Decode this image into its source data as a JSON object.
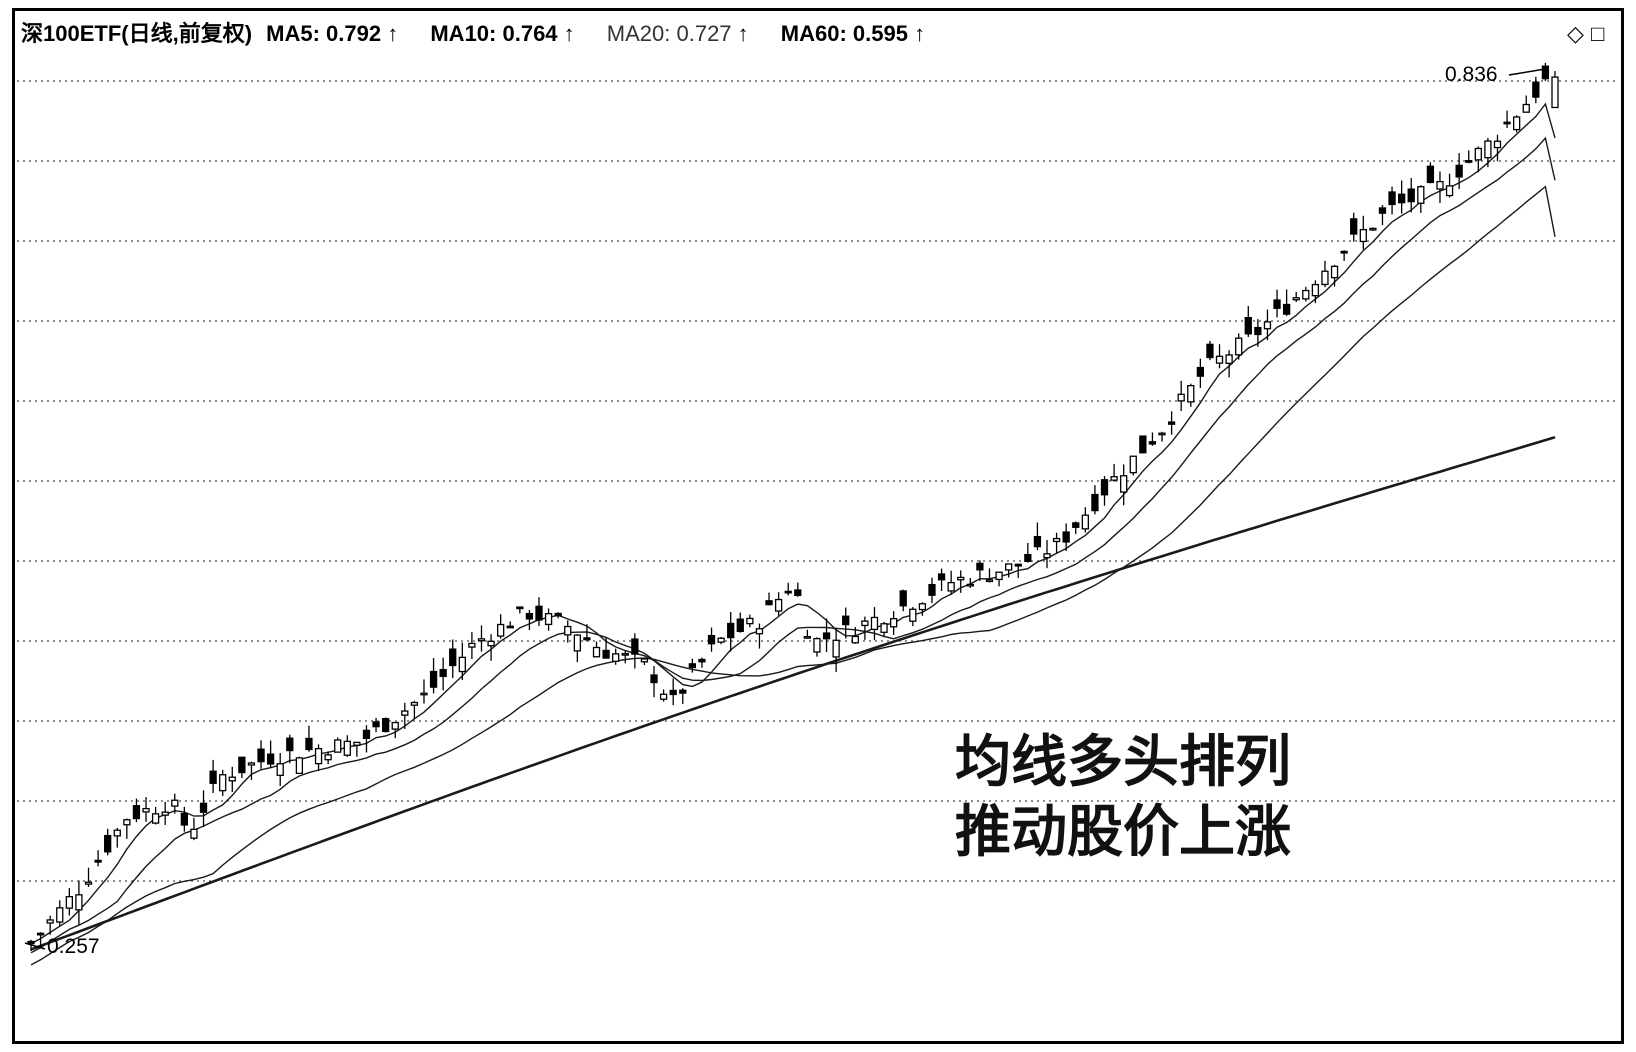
{
  "header": {
    "name": "深100ETF(日线,前复权)",
    "ma5_label": "MA5: 0.792",
    "ma10_label": "MA10: 0.764",
    "ma20_label": "MA20: 0.727",
    "ma60_label": "MA60: 0.595",
    "arrow": "↑",
    "controls": [
      "◇",
      "□"
    ]
  },
  "chart_data": {
    "type": "candlestick",
    "title": "深100ETF(日线,前复权)",
    "price_high_label": "0.836",
    "price_low_label": "0.257",
    "price_high": 0.836,
    "price_low": 0.257,
    "ylim": [
      0.24,
      0.86
    ],
    "grid": true,
    "grid_style": "dotted horizontal",
    "annotation_lines": [
      "均线多头排列",
      "推动股价上涨"
    ],
    "candle_count": 160,
    "moving_averages": [
      {
        "name": "MA5",
        "value": 0.792
      },
      {
        "name": "MA10",
        "value": 0.764
      },
      {
        "name": "MA20",
        "value": 0.727
      },
      {
        "name": "MA60",
        "value": 0.595
      }
    ],
    "ma60_endpoints": [
      0.258,
      0.595
    ],
    "close_anchors": [
      [
        0,
        0.262
      ],
      [
        8,
        0.3
      ],
      [
        15,
        0.345
      ],
      [
        22,
        0.355
      ],
      [
        25,
        0.335
      ],
      [
        30,
        0.372
      ],
      [
        38,
        0.385
      ],
      [
        45,
        0.39
      ],
      [
        52,
        0.395
      ],
      [
        62,
        0.425
      ],
      [
        70,
        0.46
      ],
      [
        78,
        0.48
      ],
      [
        85,
        0.47
      ],
      [
        90,
        0.455
      ],
      [
        97,
        0.445
      ],
      [
        101,
        0.42
      ],
      [
        108,
        0.46
      ],
      [
        115,
        0.475
      ],
      [
        120,
        0.5
      ],
      [
        123,
        0.46
      ],
      [
        130,
        0.47
      ],
      [
        138,
        0.485
      ],
      [
        145,
        0.5
      ],
      [
        155,
        0.51
      ],
      [
        162,
        0.525
      ],
      [
        170,
        0.565
      ],
      [
        178,
        0.6
      ],
      [
        185,
        0.64
      ],
      [
        192,
        0.66
      ],
      [
        200,
        0.69
      ],
      [
        207,
        0.72
      ],
      [
        214,
        0.745
      ],
      [
        222,
        0.76
      ],
      [
        230,
        0.79
      ],
      [
        240,
        0.836
      ]
    ]
  },
  "colors": {
    "background": "#ffffff",
    "frame": "#000000",
    "candle": "#000000",
    "ma": "#1a1a1a"
  }
}
